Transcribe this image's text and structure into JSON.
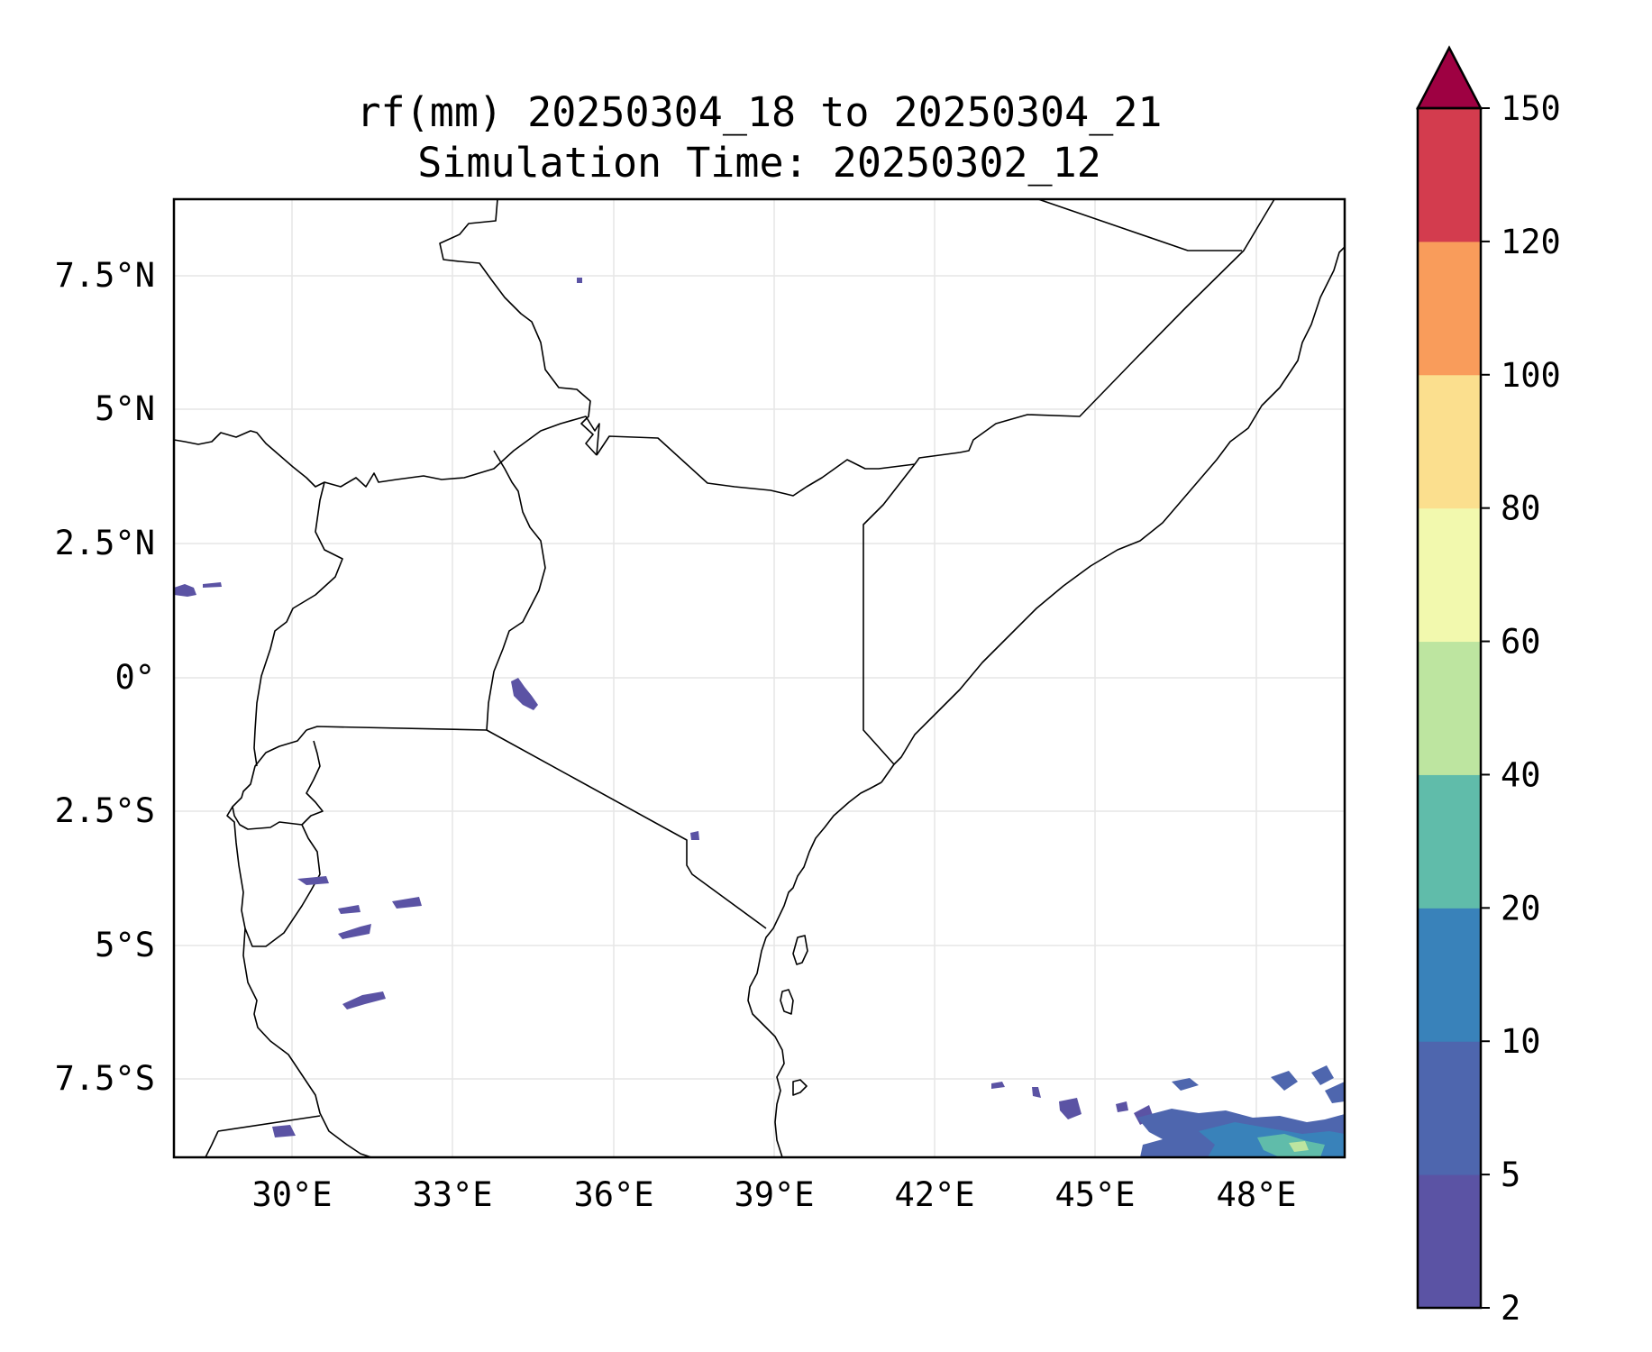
{
  "title": {
    "line1": "rf(mm) 20250304_18 to 20250304_21",
    "line2": "Simulation Time: 20250302_12"
  },
  "map": {
    "lon_range": [
      28.0,
      49.8
    ],
    "lat_range": [
      -9.0,
      8.9
    ],
    "lon_ticks": [
      "30°E",
      "33°E",
      "36°E",
      "39°E",
      "42°E",
      "45°E",
      "48°E"
    ],
    "lat_ticks": [
      "7.5°N",
      "5°N",
      "2.5°N",
      "0°",
      "2.5°S",
      "5°S",
      "7.5°S"
    ],
    "gridlines": true,
    "features": [
      "coastline",
      "country-borders"
    ]
  },
  "colorbar": {
    "ticks": [
      "2",
      "5",
      "10",
      "20",
      "40",
      "60",
      "80",
      "100",
      "120",
      "150"
    ],
    "colors": [
      "#5b53a4",
      "#4e66ae",
      "#3982ba",
      "#60bcaa",
      "#bde5a0",
      "#f2f9ae",
      "#fbdf8e",
      "#f99c5b",
      "#d33c4e"
    ],
    "extend_color": "#9e0142",
    "extend": "max"
  }
}
